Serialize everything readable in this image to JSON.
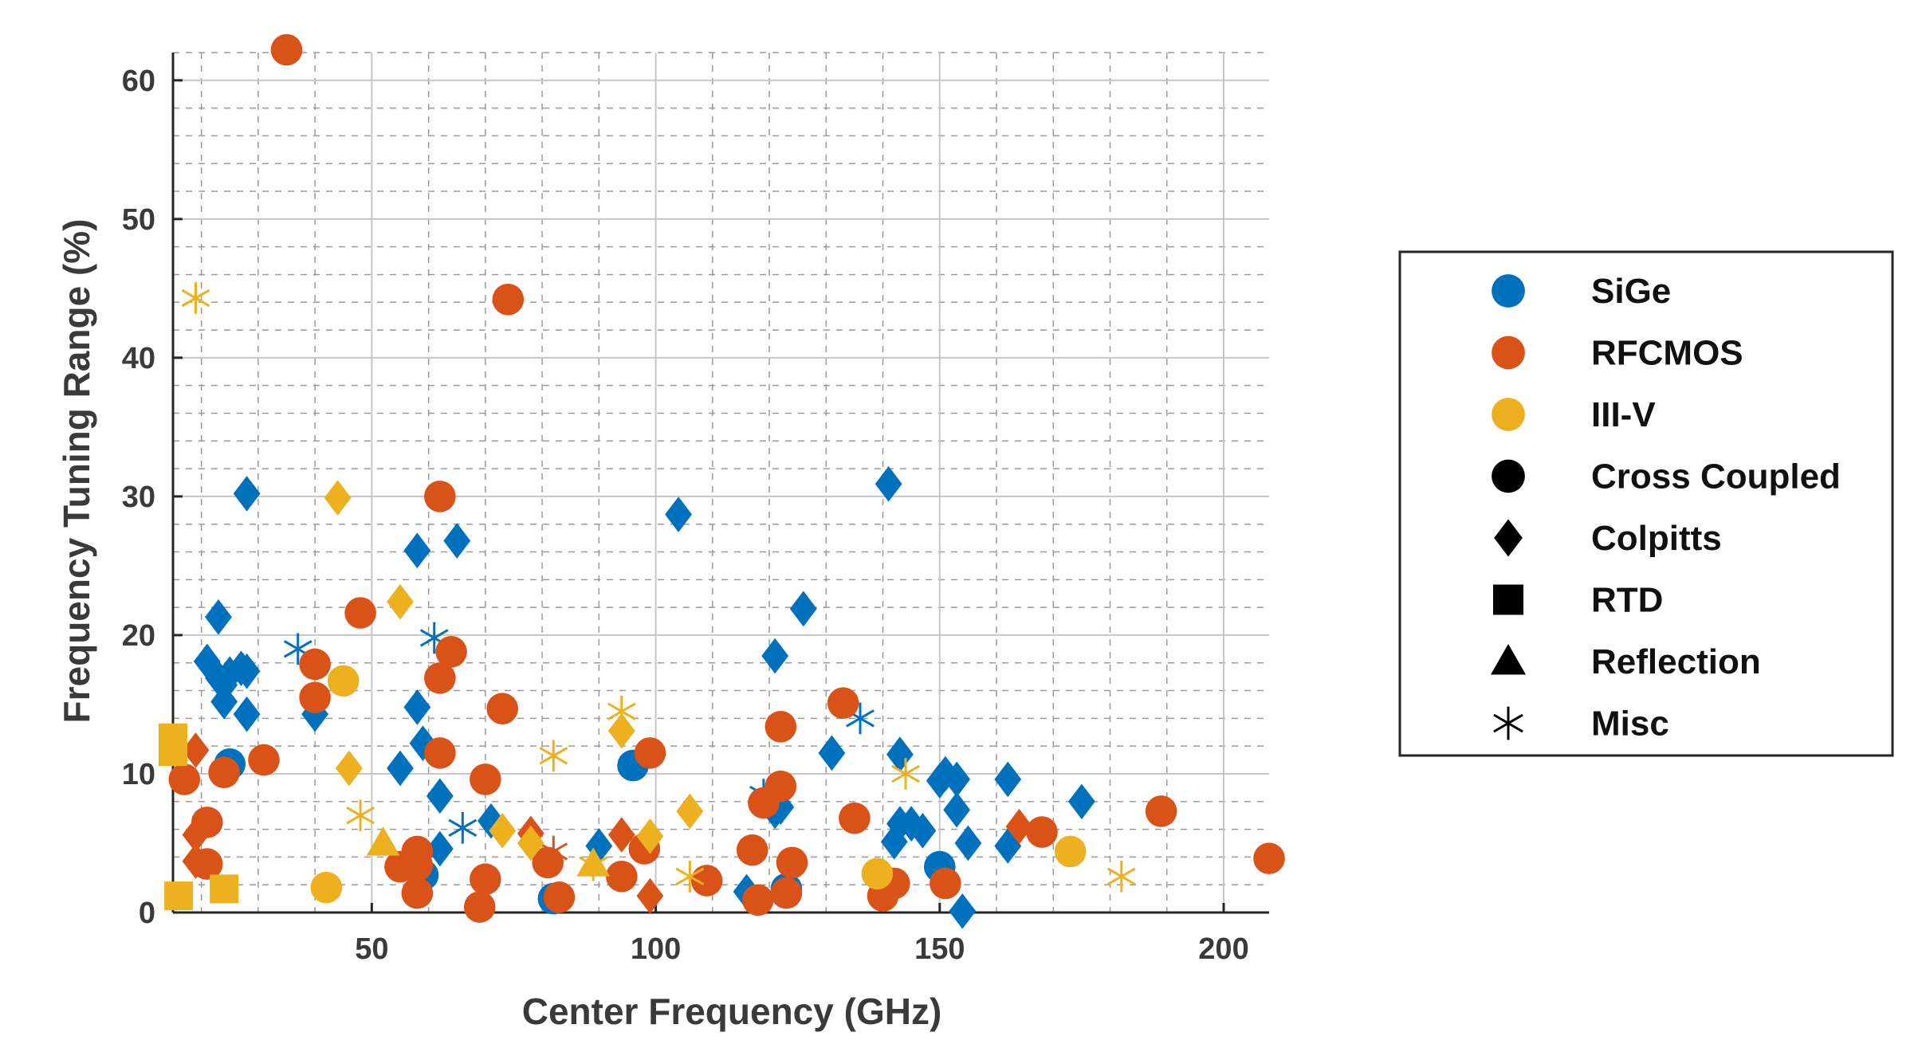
{
  "chart_data": {
    "type": "scatter",
    "title": "",
    "xlabel": "Center Frequency (GHz)",
    "ylabel": "Frequency Tuning Range (%)",
    "xlim": [
      15,
      208
    ],
    "ylim": [
      0,
      62
    ],
    "x_ticks": [
      50,
      100,
      150,
      200
    ],
    "y_ticks": [
      0,
      10,
      20,
      30,
      40,
      50,
      60
    ],
    "grid": true,
    "legend_position": "right",
    "legend": {
      "colors": [
        {
          "label": "SiGe",
          "color": "#0072bd"
        },
        {
          "label": "RFCMOS",
          "color": "#d95319"
        },
        {
          "label": "III-V",
          "color": "#edb120"
        }
      ],
      "markers": [
        {
          "label": "Cross Coupled",
          "marker": "circle"
        },
        {
          "label": "Colpitts",
          "marker": "diamond"
        },
        {
          "label": "RTD",
          "marker": "square"
        },
        {
          "label": "Reflection",
          "marker": "triangle"
        },
        {
          "label": "Misc",
          "marker": "star"
        }
      ]
    },
    "series": [
      {
        "technology": "SiGe",
        "topology": "Cross Coupled",
        "color": "#0072bd",
        "marker": "circle",
        "points": [
          [
            25,
            10.7
          ],
          [
            59,
            2.7
          ],
          [
            82,
            1.0
          ],
          [
            96,
            10.6
          ],
          [
            123,
            1.7
          ],
          [
            150,
            3.3
          ]
        ]
      },
      {
        "technology": "SiGe",
        "topology": "Colpitts",
        "color": "#0072bd",
        "marker": "diamond",
        "points": [
          [
            28,
            30.2
          ],
          [
            23,
            21.3
          ],
          [
            21,
            18.1
          ],
          [
            23,
            16.9
          ],
          [
            24,
            16.4
          ],
          [
            25,
            17.2
          ],
          [
            27,
            17.6
          ],
          [
            28,
            17.4
          ],
          [
            24,
            15.2
          ],
          [
            28,
            14.3
          ],
          [
            40,
            14.3
          ],
          [
            58,
            26.1
          ],
          [
            65,
            26.8
          ],
          [
            58,
            14.8
          ],
          [
            59,
            12.2
          ],
          [
            55,
            10.4
          ],
          [
            62,
            8.4
          ],
          [
            62,
            4.6
          ],
          [
            71,
            6.6
          ],
          [
            90,
            4.8
          ],
          [
            104,
            28.7
          ],
          [
            121,
            18.5
          ],
          [
            126,
            21.9
          ],
          [
            122,
            7.6
          ],
          [
            121,
            7.3
          ],
          [
            116,
            1.5
          ],
          [
            131,
            11.5
          ],
          [
            141,
            30.9
          ],
          [
            143,
            11.4
          ],
          [
            143,
            6.4
          ],
          [
            142,
            5.1
          ],
          [
            145,
            6.4
          ],
          [
            147,
            5.9
          ],
          [
            150,
            9.5
          ],
          [
            151,
            10.0
          ],
          [
            153,
            9.6
          ],
          [
            153,
            7.4
          ],
          [
            155,
            5.0
          ],
          [
            154,
            0.1
          ],
          [
            162,
            9.6
          ],
          [
            162,
            4.8
          ],
          [
            175,
            8.0
          ]
        ]
      },
      {
        "technology": "SiGe",
        "topology": "Misc",
        "color": "#0072bd",
        "marker": "star",
        "points": [
          [
            37,
            19.0
          ],
          [
            61,
            19.8
          ],
          [
            66,
            6.1
          ],
          [
            119,
            8.5
          ],
          [
            136,
            14.0
          ]
        ]
      },
      {
        "technology": "RFCMOS",
        "topology": "Cross Coupled",
        "color": "#d95319",
        "marker": "circle",
        "points": [
          [
            35,
            62.2
          ],
          [
            74,
            44.2
          ],
          [
            62,
            30.0
          ],
          [
            48,
            21.6
          ],
          [
            40,
            17.9
          ],
          [
            64,
            18.8
          ],
          [
            62,
            16.9
          ],
          [
            40,
            15.5
          ],
          [
            73,
            14.7
          ],
          [
            31,
            11.0
          ],
          [
            62,
            11.5
          ],
          [
            24,
            10.1
          ],
          [
            17,
            9.6
          ],
          [
            70,
            9.6
          ],
          [
            21,
            6.5
          ],
          [
            58,
            4.4
          ],
          [
            58,
            3.4
          ],
          [
            55,
            3.3
          ],
          [
            21,
            3.5
          ],
          [
            58,
            1.4
          ],
          [
            70,
            2.4
          ],
          [
            69,
            0.4
          ],
          [
            81,
            3.6
          ],
          [
            83,
            1.1
          ],
          [
            94,
            2.6
          ],
          [
            99,
            11.5
          ],
          [
            98,
            4.6
          ],
          [
            109,
            2.3
          ],
          [
            117,
            4.5
          ],
          [
            119,
            7.9
          ],
          [
            122,
            9.1
          ],
          [
            122,
            13.4
          ],
          [
            123,
            1.4
          ],
          [
            124,
            3.6
          ],
          [
            118,
            0.9
          ],
          [
            133,
            15.1
          ],
          [
            135,
            6.8
          ],
          [
            140,
            1.2
          ],
          [
            142,
            2.1
          ],
          [
            151,
            2.1
          ],
          [
            168,
            5.8
          ],
          [
            189,
            7.3
          ],
          [
            208,
            3.9
          ]
        ]
      },
      {
        "technology": "RFCMOS",
        "topology": "Colpitts",
        "color": "#d95319",
        "marker": "diamond",
        "points": [
          [
            19,
            11.7
          ],
          [
            19,
            5.6
          ],
          [
            19,
            3.7
          ],
          [
            78,
            5.7
          ],
          [
            94,
            5.6
          ],
          [
            99,
            1.2
          ],
          [
            164,
            6.2
          ]
        ]
      },
      {
        "technology": "RFCMOS",
        "topology": "Misc",
        "color": "#d95319",
        "marker": "star",
        "points": [
          [
            82,
            4.4
          ]
        ]
      },
      {
        "technology": "III-V",
        "topology": "Cross Coupled",
        "color": "#edb120",
        "marker": "circle",
        "points": [
          [
            45,
            16.7
          ],
          [
            42,
            1.8
          ],
          [
            139,
            2.8
          ],
          [
            173,
            4.4
          ]
        ]
      },
      {
        "technology": "III-V",
        "topology": "Colpitts",
        "color": "#edb120",
        "marker": "diamond",
        "points": [
          [
            44,
            29.9
          ],
          [
            55,
            22.4
          ],
          [
            46,
            10.4
          ],
          [
            73,
            5.9
          ],
          [
            78,
            5.0
          ],
          [
            94,
            13.1
          ],
          [
            99,
            5.5
          ],
          [
            106,
            7.3
          ]
        ]
      },
      {
        "technology": "III-V",
        "topology": "RTD",
        "color": "#edb120",
        "marker": "square",
        "points": [
          [
            15,
            12.6
          ],
          [
            15,
            11.6
          ],
          [
            16,
            1.2
          ],
          [
            24,
            1.7
          ]
        ]
      },
      {
        "technology": "III-V",
        "topology": "Reflection",
        "color": "#edb120",
        "marker": "triangle",
        "points": [
          [
            52,
            5.0
          ],
          [
            89,
            3.5
          ]
        ]
      },
      {
        "technology": "III-V",
        "topology": "Misc",
        "color": "#edb120",
        "marker": "star",
        "points": [
          [
            19,
            44.3
          ],
          [
            48,
            7.0
          ],
          [
            82,
            11.3
          ],
          [
            89,
            3.4
          ],
          [
            94,
            14.5
          ],
          [
            106,
            2.6
          ],
          [
            144,
            10.0
          ],
          [
            182,
            2.6
          ]
        ]
      }
    ]
  }
}
